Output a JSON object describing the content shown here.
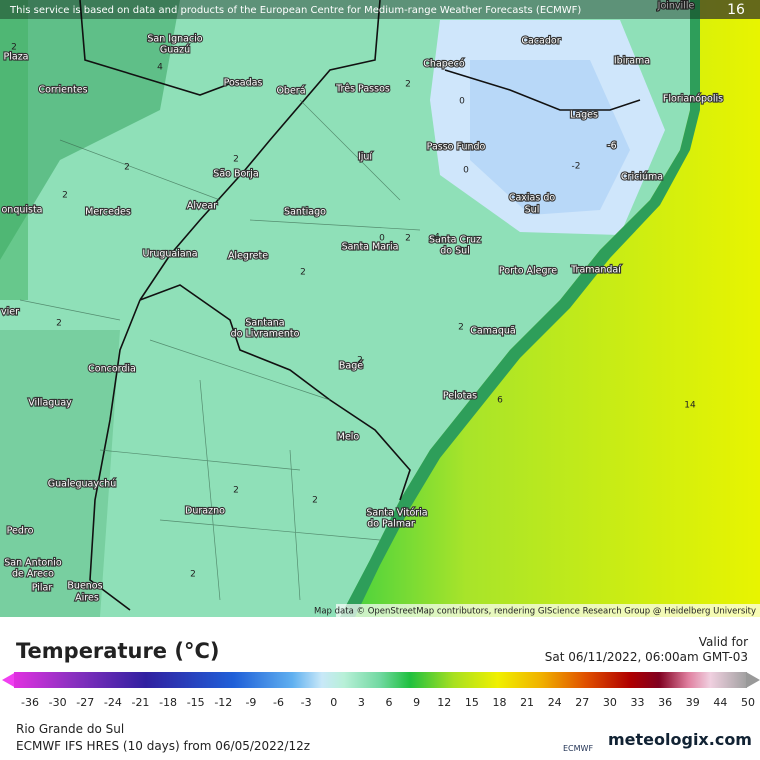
{
  "header": {
    "notice": "This service is based on data and products of the European Centre for Medium-range Weather Forecasts (ECMWF)",
    "frame": "16"
  },
  "map": {
    "labels": [
      "Joinville",
      "San Ignacio",
      "Guazú",
      "Cacador",
      "Chapecó",
      "Ibirama",
      "Posadas",
      "Oberá",
      "Três Passos",
      "Corrientes",
      "Florianópolis",
      "Plaza",
      "Lages",
      "Passo Fundo",
      "Ijuí",
      "São Borja",
      "Criciúma",
      "Caxias do",
      "Sul",
      "Alvear",
      "Santiago",
      "Mercedes",
      "onquista",
      "Santa Maria",
      "Santa Cruz",
      "do Sul",
      "Uruguaiana",
      "Alegrete",
      "Porto Alegre",
      "Tramandaí",
      "vier",
      "Santana",
      "do Livramento",
      "Camaquã",
      "Concordia",
      "Bagé",
      "Pelotas",
      "Villaguay",
      "Melo",
      "Gualeguaychú",
      "Santa Vitória",
      "do Palmar",
      "Durazno",
      "Pedro",
      "San Antonio",
      "de Areco",
      "Buenos",
      "Aires",
      "Pilar"
    ],
    "contours": [
      "2",
      "4",
      "0",
      "0",
      "2",
      "-2",
      "2",
      "2",
      "2",
      "0",
      "2",
      "4",
      "2",
      "2",
      "2",
      "6",
      "2",
      "14",
      "2",
      "2",
      "2",
      "-6"
    ],
    "attribution": "Map data © OpenStreetMap contributors, rendering GIScience Research Group @ Heidelberg University"
  },
  "legend": {
    "title": "Temperature (°C)",
    "valid_label": "Valid for",
    "valid_time": "Sat 06/11/2022, 06:00am GMT-03",
    "ticks": [
      "-36",
      "-30",
      "-27",
      "-24",
      "-21",
      "-18",
      "-15",
      "-12",
      "-9",
      "-6",
      "-3",
      "0",
      "3",
      "6",
      "9",
      "12",
      "15",
      "18",
      "21",
      "24",
      "27",
      "30",
      "33",
      "36",
      "39",
      "44",
      "50"
    ]
  },
  "footer": {
    "region": "Rio Grande do Sul",
    "model": "ECMWF IFS HRES (10 days) from 06/05/2022/12z",
    "ecmwf": "ECMWF",
    "brand": "meteologix.com"
  }
}
